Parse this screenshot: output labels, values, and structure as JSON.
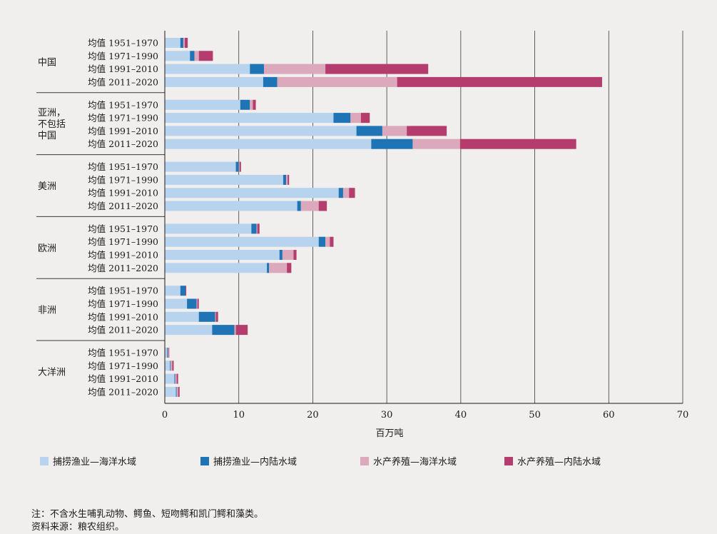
{
  "chart_data": {
    "type": "bar",
    "orientation": "horizontal",
    "stacked": true,
    "xlabel": "百万吨",
    "xlim": [
      0,
      70
    ],
    "xticks": [
      0,
      10,
      20,
      30,
      40,
      50,
      60,
      70
    ],
    "grid": true,
    "series": [
      {
        "name": "捕捞渔业—海洋水域",
        "color": "#b7d3ee"
      },
      {
        "name": "捕捞渔业—内陆水域",
        "color": "#1f74b5"
      },
      {
        "name": "水产养殖—海洋水域",
        "color": "#dca8bb"
      },
      {
        "name": "水产养殖—内陆水域",
        "color": "#b53d6e"
      }
    ],
    "groups": [
      {
        "name": "中国",
        "bars": [
          {
            "label": "均值 1951–1970",
            "values": [
              2.1,
              0.4,
              0.2,
              0.4
            ]
          },
          {
            "label": "均值 1971–1990",
            "values": [
              3.4,
              0.6,
              0.6,
              1.9
            ]
          },
          {
            "label": "均值 1991–2010",
            "values": [
              11.5,
              1.9,
              8.3,
              13.9
            ]
          },
          {
            "label": "均值 2011–2020",
            "values": [
              13.3,
              1.9,
              16.2,
              27.7
            ]
          }
        ]
      },
      {
        "name": "亚洲，\n不包括\n中国",
        "bars": [
          {
            "label": "均值 1951–1970",
            "values": [
              10.2,
              1.3,
              0.4,
              0.4
            ]
          },
          {
            "label": "均值 1971–1990",
            "values": [
              22.8,
              2.3,
              1.4,
              1.2
            ]
          },
          {
            "label": "均值 1991–2010",
            "values": [
              25.9,
              3.5,
              3.3,
              5.4
            ]
          },
          {
            "label": "均值 2011–2020",
            "values": [
              27.9,
              5.6,
              6.4,
              15.7
            ]
          }
        ]
      },
      {
        "name": "美洲",
        "bars": [
          {
            "label": "均值 1951–1970",
            "values": [
              9.6,
              0.4,
              0.1,
              0.2
            ]
          },
          {
            "label": "均值 1971–1990",
            "values": [
              16.0,
              0.4,
              0.2,
              0.2
            ]
          },
          {
            "label": "均值 1991–2010",
            "values": [
              23.5,
              0.6,
              0.8,
              0.8
            ]
          },
          {
            "label": "均值 2011–2020",
            "values": [
              17.9,
              0.5,
              2.4,
              1.1
            ]
          }
        ]
      },
      {
        "name": "欧洲",
        "bars": [
          {
            "label": "均值 1951–1970",
            "values": [
              11.7,
              0.7,
              0.1,
              0.3
            ]
          },
          {
            "label": "均值 1971–1990",
            "values": [
              20.8,
              0.9,
              0.6,
              0.5
            ]
          },
          {
            "label": "均值 1991–2010",
            "values": [
              15.5,
              0.4,
              1.5,
              0.4
            ]
          },
          {
            "label": "均值 2011–2020",
            "values": [
              13.8,
              0.3,
              2.4,
              0.6
            ]
          }
        ]
      },
      {
        "name": "非洲",
        "bars": [
          {
            "label": "均值 1951–1970",
            "values": [
              2.1,
              0.7,
              0.0,
              0.1
            ]
          },
          {
            "label": "均值 1971–1990",
            "values": [
              3.0,
              1.3,
              0.1,
              0.2
            ]
          },
          {
            "label": "均值 1991–2010",
            "values": [
              4.6,
              2.2,
              0.1,
              0.3
            ]
          },
          {
            "label": "均值 2011–2020",
            "values": [
              6.4,
              3.0,
              0.2,
              1.6
            ]
          }
        ]
      },
      {
        "name": "大洋洲",
        "bars": [
          {
            "label": "均值 1951–1970",
            "values": [
              0.3,
              0.1,
              0.1,
              0.1
            ]
          },
          {
            "label": "均值 1971–1990",
            "values": [
              0.7,
              0.1,
              0.2,
              0.2
            ]
          },
          {
            "label": "均值 1991–2010",
            "values": [
              1.3,
              0.1,
              0.2,
              0.2
            ]
          },
          {
            "label": "均值 2011–2020",
            "values": [
              1.5,
              0.1,
              0.2,
              0.2
            ]
          }
        ]
      }
    ]
  },
  "notes": {
    "note": "注：不含水生哺乳动物、鳄鱼、短吻鳄和凯门鳄和藻类。",
    "source": "资料来源：粮农组织。"
  }
}
